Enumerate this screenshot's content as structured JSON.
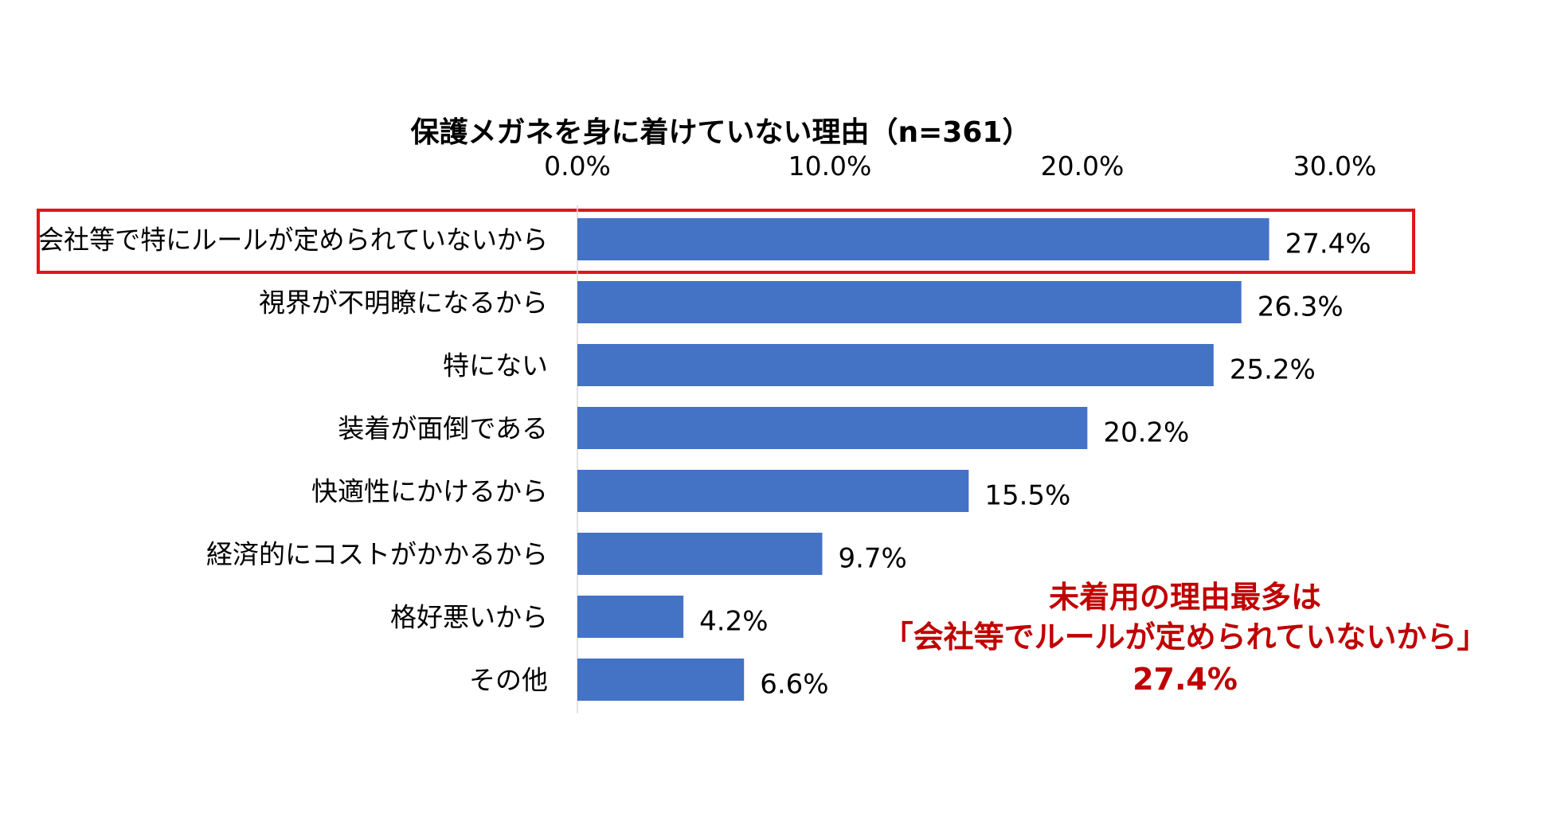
{
  "chart_data": {
    "type": "bar",
    "orientation": "horizontal",
    "title": "保護メガネを身に着けていない理由（n=361）",
    "xlabel": "",
    "ylabel": "",
    "xlim": [
      0,
      30
    ],
    "axis_position": "top",
    "tick_values": [
      0,
      10,
      20,
      30
    ],
    "tick_labels": [
      "0.0%",
      "10.0%",
      "20.0%",
      "30.0%"
    ],
    "categories": [
      "会社等で特にルールが定められていないから",
      "視界が不明瞭になるから",
      "特にない",
      "装着が面倒である",
      "快適性にかけるから",
      "経済的にコストがかかるから",
      "格好悪いから",
      "その他"
    ],
    "values": [
      27.4,
      26.3,
      25.2,
      20.2,
      15.5,
      9.7,
      4.2,
      6.6
    ],
    "value_labels": [
      "27.4%",
      "26.3%",
      "25.2%",
      "20.2%",
      "15.5%",
      "9.7%",
      "4.2%",
      "6.6%"
    ],
    "highlighted_category_index": 0,
    "grid": false,
    "colors": {
      "bar": "#4472C4",
      "highlight_box": "#E3141B",
      "annotation": "#C00000",
      "axis_line": "#D9D9D9"
    },
    "annotation": {
      "lines": [
        "未着用の理由最多は",
        "「会社等でルールが定められていないから」",
        "27.4%"
      ]
    }
  }
}
